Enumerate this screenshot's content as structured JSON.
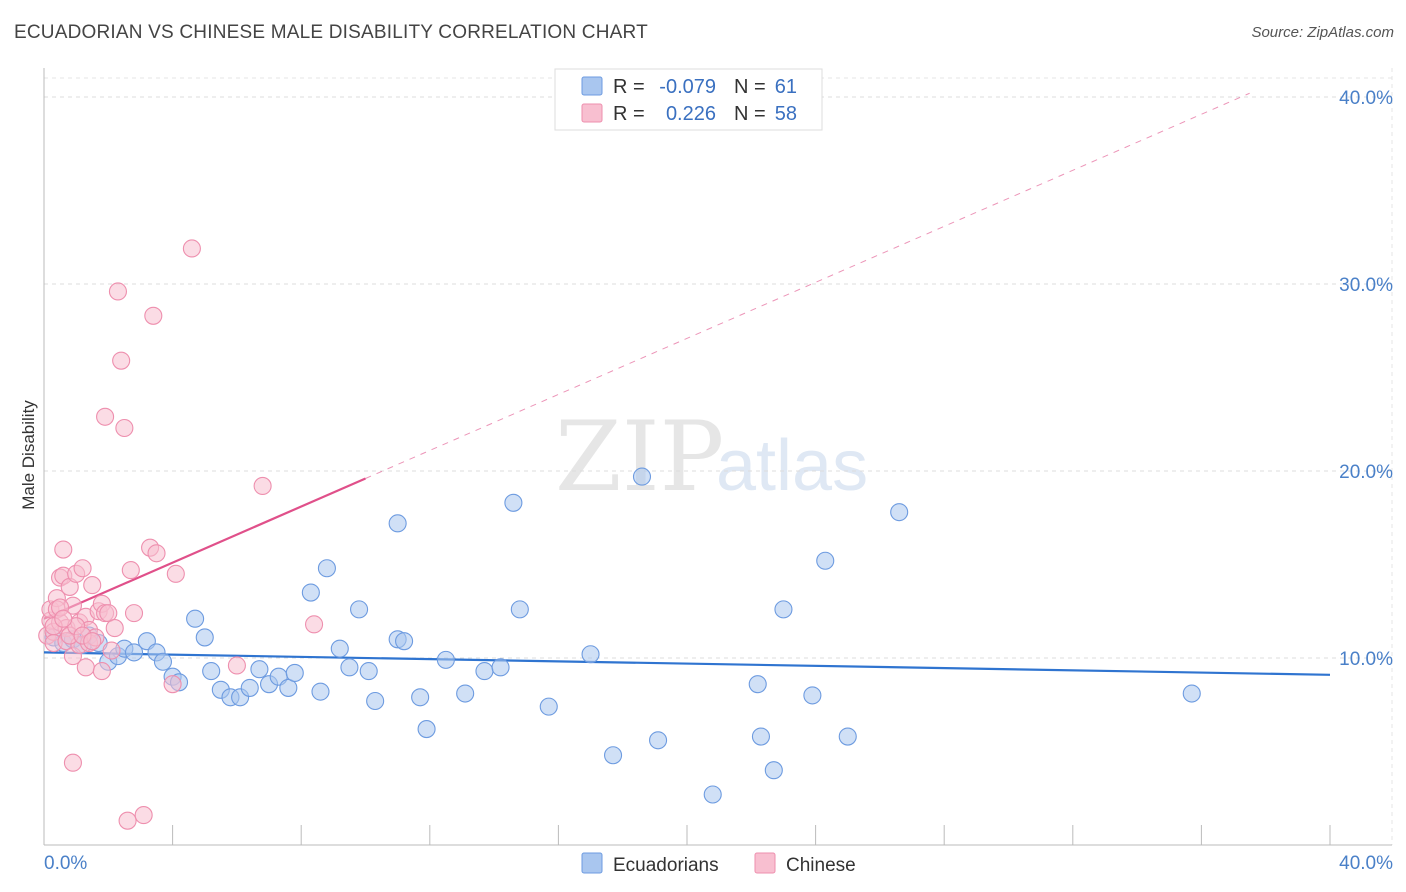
{
  "header": {
    "title": "ECUADORIAN VS CHINESE MALE DISABILITY CORRELATION CHART",
    "source": "Source: ZipAtlas.com"
  },
  "watermark": {
    "zip": "ZIP",
    "atlas": "atlas"
  },
  "legend": {
    "r_label": "R =",
    "n_label": "N =",
    "rows": [
      {
        "r": "-0.079",
        "n": "61",
        "color": "#a9c6ef",
        "stroke": "#6d9be0"
      },
      {
        "r": "0.226",
        "n": "58",
        "color": "#f8bfd0",
        "stroke": "#ee8fae"
      }
    ]
  },
  "bottom_legend": [
    {
      "label": "Ecuadorians",
      "color": "#a9c6ef",
      "stroke": "#6d9be0"
    },
    {
      "label": "Chinese",
      "color": "#f8bfd0",
      "stroke": "#ee8fae"
    }
  ],
  "chart_data": {
    "type": "scatter",
    "title": "ECUADORIAN VS CHINESE MALE DISABILITY CORRELATION CHART",
    "xlabel": "",
    "ylabel": "Male Disability",
    "xlim": [
      0,
      40
    ],
    "ylim": [
      0,
      40
    ],
    "x_tick_labels": [
      "0.0%",
      "40.0%"
    ],
    "y_ticks": [
      10,
      20,
      30,
      40
    ],
    "y_tick_labels": [
      "10.0%",
      "20.0%",
      "30.0%",
      "40.0%"
    ],
    "grid": true,
    "legend_position": "top-center",
    "series": [
      {
        "name": "Ecuadorians",
        "color": "#6d9be0",
        "fill": "#a9c6ef",
        "line_color": "#2f74d0",
        "trend": {
          "x": [
            0,
            40
          ],
          "y": [
            10.3,
            9.1
          ]
        },
        "points": [
          [
            0.3,
            11.1
          ],
          [
            0.6,
            10.8
          ],
          [
            0.9,
            11.0
          ],
          [
            1.2,
            10.7
          ],
          [
            1.4,
            11.2
          ],
          [
            1.7,
            10.8
          ],
          [
            2.0,
            9.8
          ],
          [
            2.3,
            10.1
          ],
          [
            2.5,
            10.5
          ],
          [
            2.8,
            10.3
          ],
          [
            3.2,
            10.9
          ],
          [
            3.5,
            10.3
          ],
          [
            3.7,
            9.8
          ],
          [
            4.0,
            9.0
          ],
          [
            4.2,
            8.7
          ],
          [
            4.7,
            12.1
          ],
          [
            5.0,
            11.1
          ],
          [
            5.2,
            9.3
          ],
          [
            5.5,
            8.3
          ],
          [
            5.8,
            7.9
          ],
          [
            6.1,
            7.9
          ],
          [
            6.4,
            8.4
          ],
          [
            6.7,
            9.4
          ],
          [
            7.0,
            8.6
          ],
          [
            7.3,
            9.0
          ],
          [
            7.6,
            8.4
          ],
          [
            7.8,
            9.2
          ],
          [
            8.3,
            13.5
          ],
          [
            8.6,
            8.2
          ],
          [
            8.8,
            14.8
          ],
          [
            9.2,
            10.5
          ],
          [
            9.5,
            9.5
          ],
          [
            9.8,
            12.6
          ],
          [
            10.1,
            9.3
          ],
          [
            10.3,
            7.7
          ],
          [
            11.0,
            11.0
          ],
          [
            11.2,
            10.9
          ],
          [
            11.0,
            17.2
          ],
          [
            11.7,
            7.9
          ],
          [
            11.9,
            6.2
          ],
          [
            12.5,
            9.9
          ],
          [
            13.1,
            8.1
          ],
          [
            13.7,
            9.3
          ],
          [
            14.2,
            9.5
          ],
          [
            14.6,
            18.3
          ],
          [
            14.8,
            12.6
          ],
          [
            15.7,
            7.4
          ],
          [
            17.0,
            10.2
          ],
          [
            17.7,
            4.8
          ],
          [
            18.6,
            19.7
          ],
          [
            19.1,
            5.6
          ],
          [
            20.8,
            2.7
          ],
          [
            22.2,
            8.6
          ],
          [
            22.3,
            5.8
          ],
          [
            22.7,
            4.0
          ],
          [
            23.0,
            12.6
          ],
          [
            23.9,
            8.0
          ],
          [
            24.3,
            15.2
          ],
          [
            25.0,
            5.8
          ],
          [
            26.6,
            17.8
          ],
          [
            35.7,
            8.1
          ]
        ]
      },
      {
        "name": "Chinese",
        "color": "#ee8fae",
        "fill": "#f8bfd0",
        "line_color": "#e0508a",
        "trend": {
          "x": [
            0,
            10
          ],
          "y": [
            12.1,
            19.6
          ]
        },
        "trend_extension": {
          "x": [
            10,
            37.5
          ],
          "y": [
            19.6,
            40.2
          ]
        },
        "points": [
          [
            0.1,
            11.2
          ],
          [
            0.2,
            12.0
          ],
          [
            0.2,
            12.6
          ],
          [
            0.3,
            11.4
          ],
          [
            0.3,
            10.8
          ],
          [
            0.4,
            13.2
          ],
          [
            0.4,
            12.6
          ],
          [
            0.5,
            14.3
          ],
          [
            0.5,
            11.9
          ],
          [
            0.6,
            15.8
          ],
          [
            0.6,
            14.4
          ],
          [
            0.7,
            11.6
          ],
          [
            0.7,
            10.9
          ],
          [
            0.8,
            13.8
          ],
          [
            0.9,
            12.8
          ],
          [
            0.9,
            10.1
          ],
          [
            1.0,
            14.5
          ],
          [
            1.1,
            11.9
          ],
          [
            1.1,
            10.7
          ],
          [
            1.2,
            14.8
          ],
          [
            1.3,
            12.2
          ],
          [
            1.3,
            9.5
          ],
          [
            1.4,
            11.5
          ],
          [
            1.4,
            10.8
          ],
          [
            1.5,
            13.9
          ],
          [
            1.6,
            11.1
          ],
          [
            1.7,
            12.5
          ],
          [
            1.8,
            12.9
          ],
          [
            1.8,
            9.3
          ],
          [
            1.9,
            12.4
          ],
          [
            2.0,
            12.4
          ],
          [
            2.1,
            10.4
          ],
          [
            2.2,
            11.6
          ],
          [
            2.3,
            29.6
          ],
          [
            2.4,
            25.9
          ],
          [
            2.5,
            22.3
          ],
          [
            2.7,
            14.7
          ],
          [
            2.8,
            12.4
          ],
          [
            1.9,
            22.9
          ],
          [
            3.3,
            15.9
          ],
          [
            3.4,
            28.3
          ],
          [
            3.5,
            15.6
          ],
          [
            4.1,
            14.5
          ],
          [
            4.0,
            8.6
          ],
          [
            4.6,
            31.9
          ],
          [
            6.0,
            9.6
          ],
          [
            6.8,
            19.2
          ],
          [
            8.4,
            11.8
          ],
          [
            0.9,
            4.4
          ],
          [
            2.6,
            1.3
          ],
          [
            3.1,
            1.6
          ],
          [
            0.3,
            11.7
          ],
          [
            0.5,
            12.7
          ],
          [
            0.8,
            11.2
          ],
          [
            1.0,
            11.7
          ],
          [
            1.2,
            11.2
          ],
          [
            1.5,
            10.9
          ],
          [
            0.6,
            12.1
          ]
        ]
      }
    ]
  }
}
